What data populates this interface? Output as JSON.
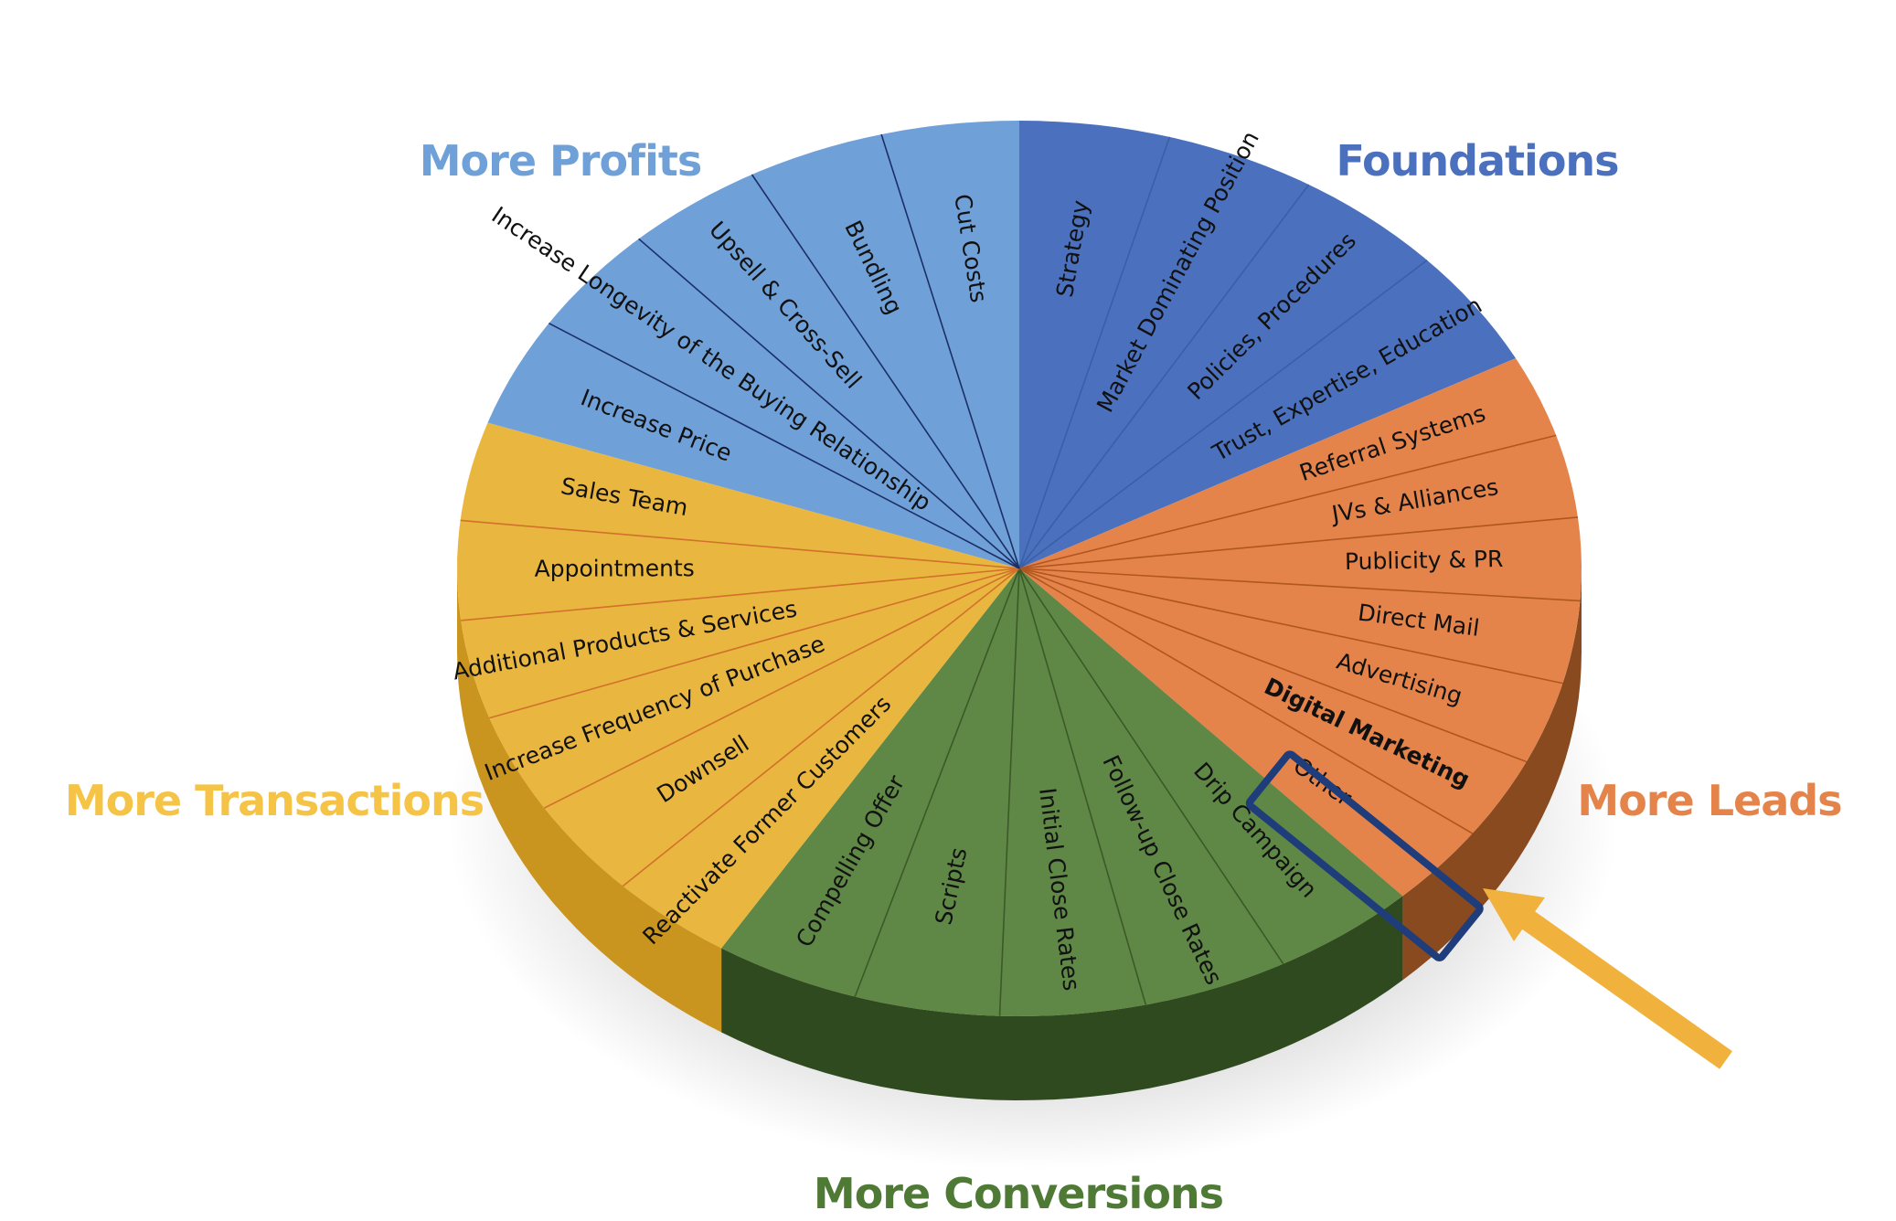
{
  "colors": {
    "foundations": "#4B71BE",
    "foundations_dark": "#33528f",
    "profits": "#6FA0D8",
    "profits_dark": "#4f7fb4",
    "transactions": "#F5C446",
    "transactions_dark": "#c9951f",
    "conversions": "#5F8745",
    "conversions_dark": "#2f4a1f",
    "leads": "#E5844A",
    "leads_dark": "#8a4a20",
    "highlight_box": "#1F3D7A",
    "arrow": "#F0B23C"
  },
  "categories": [
    {
      "id": "foundations",
      "title": "Foundations",
      "color": "#4B71BE",
      "segments": [
        "Strategy",
        "Market Dominating Position",
        "Policies, Procedures",
        "Trust, Expertise, Education"
      ]
    },
    {
      "id": "leads",
      "title": "More Leads",
      "color": "#E5844A",
      "segments": [
        "Referral Systems",
        "JVs & Alliances",
        "Publicity & PR",
        "Direct Mail",
        "Advertising",
        "Digital Marketing",
        "Other"
      ]
    },
    {
      "id": "conversions",
      "title": "More Conversions",
      "color": "#5F8745",
      "segments": [
        "Drip Campaign",
        "Follow-up Close Rates",
        "Initial Close Rates",
        "Scripts",
        "Compelling Offer"
      ]
    },
    {
      "id": "transactions",
      "title": "More Transactions",
      "color": "#E9B73F",
      "segments": [
        "Reactivate Former Customers",
        "Downsell",
        "Increase Frequency of Purchase",
        "Additional Products & Services",
        "Appointments",
        "Sales Team"
      ]
    },
    {
      "id": "profits",
      "title": "More Profits",
      "color": "#6FA0D8",
      "segments": [
        "Increase Price",
        "Increase Longevity of the Buying Relationship",
        "Upsell & Cross-Sell",
        "Bundling",
        "Cut Costs"
      ]
    }
  ],
  "highlighted_segment": "Digital Marketing",
  "icons": {
    "pointer": "arrow-icon"
  }
}
